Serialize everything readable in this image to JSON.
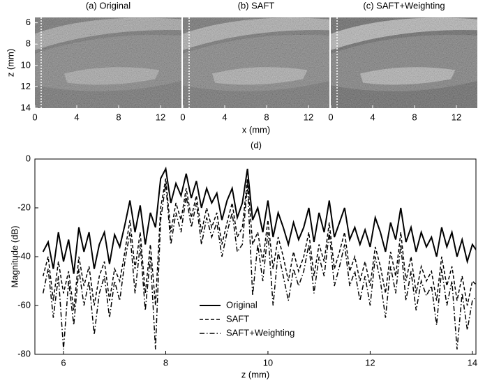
{
  "chart_data": [
    {
      "type": "image",
      "title": "(a) Original",
      "ylabel": "z (mm)",
      "xlim": [
        0,
        14
      ],
      "ylim": [
        5.5,
        14
      ],
      "y_inverted": true,
      "xticks": [
        0,
        4,
        8,
        12
      ],
      "yticks": [
        6,
        8,
        10,
        12,
        14
      ]
    },
    {
      "type": "image",
      "title": "(b) SAFT",
      "xlabel": "x (mm)",
      "xlim": [
        0,
        14
      ],
      "ylim": [
        5.5,
        14
      ],
      "y_inverted": true,
      "xticks": [
        0,
        4,
        8,
        12
      ]
    },
    {
      "type": "image",
      "title": "(c) SAFT+Weighting",
      "xlim": [
        0,
        14
      ],
      "ylim": [
        5.5,
        14
      ],
      "y_inverted": true,
      "xticks": [
        0,
        4,
        8,
        12
      ]
    },
    {
      "type": "line",
      "title": "(d)",
      "xlabel": "z (mm)",
      "ylabel": "Magnitude (dB)",
      "x": [
        5.6,
        5.7,
        5.8,
        5.9,
        6.0,
        6.1,
        6.2,
        6.3,
        6.4,
        6.5,
        6.6,
        6.7,
        6.8,
        6.9,
        7.0,
        7.1,
        7.2,
        7.3,
        7.4,
        7.5,
        7.6,
        7.7,
        7.8,
        7.9,
        8.0,
        8.1,
        8.2,
        8.3,
        8.4,
        8.5,
        8.6,
        8.7,
        8.8,
        8.9,
        9.0,
        9.1,
        9.2,
        9.3,
        9.4,
        9.5,
        9.6,
        9.7,
        9.8,
        9.9,
        10.0,
        10.1,
        10.2,
        10.3,
        10.4,
        10.5,
        10.6,
        10.7,
        10.8,
        10.9,
        11.0,
        11.1,
        11.2,
        11.3,
        11.4,
        11.5,
        11.6,
        11.7,
        11.8,
        11.9,
        12.0,
        12.1,
        12.2,
        12.3,
        12.4,
        12.5,
        12.6,
        12.7,
        12.8,
        12.9,
        13.0,
        13.1,
        13.2,
        13.3,
        13.4,
        13.5,
        13.6,
        13.7,
        13.8,
        13.9,
        14.0,
        14.1
      ],
      "series": [
        {
          "name": "Original",
          "color": "#000000",
          "dash": "solid",
          "values": [
            -38,
            -34,
            -45,
            -30,
            -42,
            -33,
            -47,
            -28,
            -38,
            -30,
            -45,
            -35,
            -30,
            -43,
            -31,
            -36,
            -27,
            -17,
            -30,
            -19,
            -35,
            -22,
            -28,
            -8,
            -4,
            -18,
            -10,
            -15,
            -6,
            -16,
            -9,
            -20,
            -12,
            -18,
            -14,
            -25,
            -17,
            -12,
            -24,
            -18,
            -4,
            -25,
            -20,
            -30,
            -17,
            -32,
            -22,
            -28,
            -35,
            -26,
            -33,
            -28,
            -20,
            -34,
            -22,
            -30,
            -17,
            -32,
            -26,
            -20,
            -33,
            -28,
            -35,
            -29,
            -36,
            -24,
            -30,
            -38,
            -26,
            -33,
            -20,
            -34,
            -28,
            -38,
            -30,
            -36,
            -32,
            -40,
            -28,
            -36,
            -30,
            -40,
            -33,
            -42,
            -35,
            -38
          ]
        },
        {
          "name": "SAFT",
          "color": "#000000",
          "dash": "dashed",
          "values": [
            -48,
            -40,
            -58,
            -42,
            -55,
            -46,
            -62,
            -40,
            -52,
            -44,
            -60,
            -48,
            -42,
            -58,
            -45,
            -50,
            -38,
            -25,
            -45,
            -30,
            -55,
            -35,
            -60,
            -20,
            -8,
            -30,
            -18,
            -25,
            -12,
            -24,
            -15,
            -30,
            -20,
            -28,
            -22,
            -35,
            -26,
            -18,
            -32,
            -28,
            -8,
            -35,
            -30,
            -42,
            -25,
            -45,
            -32,
            -40,
            -50,
            -38,
            -46,
            -40,
            -30,
            -48,
            -35,
            -42,
            -26,
            -45,
            -38,
            -30,
            -46,
            -40,
            -50,
            -42,
            -52,
            -36,
            -44,
            -55,
            -38,
            -48,
            -30,
            -50,
            -40,
            -55,
            -44,
            -50,
            -46,
            -58,
            -40,
            -52,
            -44,
            -58,
            -48,
            -60,
            -50,
            -52
          ]
        },
        {
          "name": "SAFT+Weighting",
          "color": "#000000",
          "dash": "dashdot",
          "values": [
            -55,
            -45,
            -65,
            -48,
            -78,
            -50,
            -68,
            -45,
            -60,
            -50,
            -72,
            -55,
            -48,
            -65,
            -50,
            -58,
            -42,
            -30,
            -55,
            -35,
            -62,
            -40,
            -78,
            -25,
            -10,
            -35,
            -22,
            -30,
            -15,
            -28,
            -18,
            -35,
            -24,
            -32,
            -26,
            -40,
            -30,
            -22,
            -38,
            -35,
            -10,
            -56,
            -35,
            -50,
            -30,
            -60,
            -38,
            -48,
            -58,
            -45,
            -52,
            -46,
            -35,
            -55,
            -40,
            -48,
            -30,
            -52,
            -44,
            -35,
            -52,
            -46,
            -58,
            -48,
            -60,
            -40,
            -50,
            -65,
            -44,
            -55,
            -35,
            -58,
            -46,
            -62,
            -50,
            -56,
            -52,
            -68,
            -45,
            -60,
            -50,
            -78,
            -55,
            -70,
            -58,
            -56
          ]
        }
      ],
      "xlim": [
        5.44,
        14.07
      ],
      "ylim": [
        -80,
        0
      ],
      "xticks": [
        6,
        8,
        10,
        12,
        14
      ],
      "yticks": [
        -80,
        -60,
        -40,
        -20,
        0
      ],
      "legend": "lower center"
    }
  ]
}
